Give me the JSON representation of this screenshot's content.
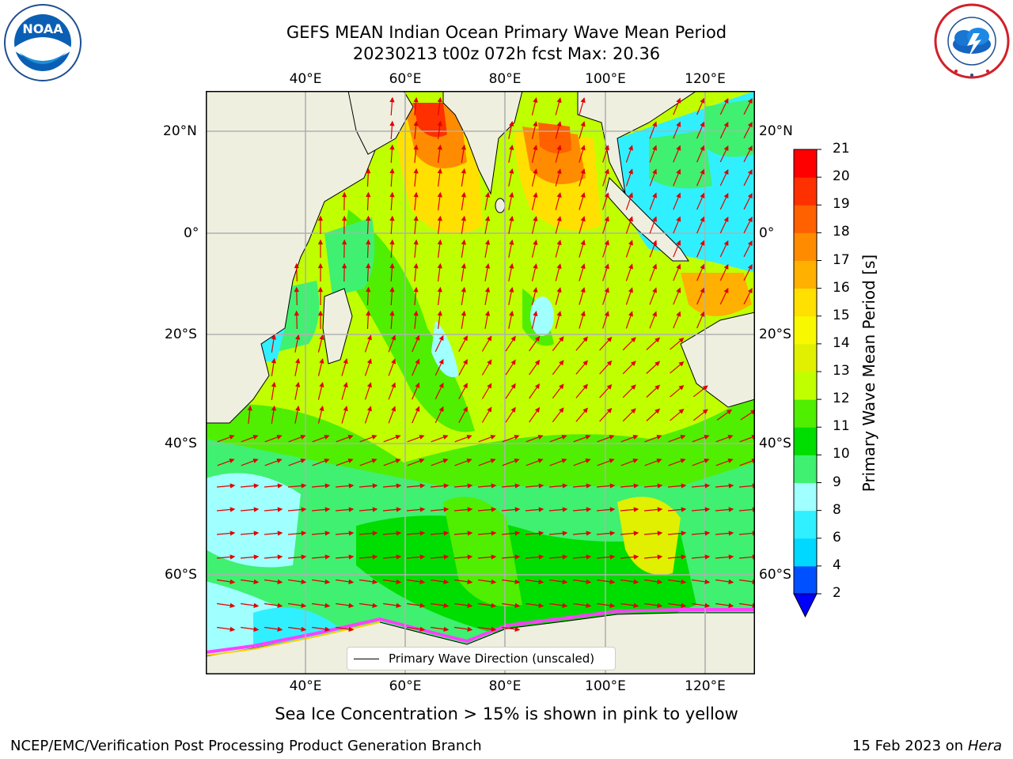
{
  "header": {
    "title_line1": "GEFS MEAN Indian Ocean Primary Wave Mean Period",
    "title_line2": "20230213 t00z 072h fcst   Max: 20.36"
  },
  "logos": {
    "noaa_text": "NOAA",
    "noaa_ring": "NATIONAL OCEANIC AND ATMOSPHERIC ADMINISTRATION",
    "noaa_bottom": "U.S. DEPARTMENT OF COMMERCE",
    "nws_ring": "NATIONAL WEATHER SERVICE"
  },
  "axes": {
    "lon_labels": [
      "40°E",
      "60°E",
      "80°E",
      "100°E",
      "120°E"
    ],
    "lat_labels": [
      "20°N",
      "0°",
      "20°S",
      "40°S",
      "60°S"
    ]
  },
  "colorbar": {
    "label": "Primary Wave Mean Period [s]",
    "ticks": [
      "2",
      "4",
      "6",
      "8",
      "9",
      "10",
      "11",
      "12",
      "13",
      "14",
      "15",
      "16",
      "17",
      "18",
      "19",
      "20",
      "21"
    ],
    "colors": [
      "#0050ff",
      "#00d8ff",
      "#30f0ff",
      "#a0ffff",
      "#40f070",
      "#00dd00",
      "#50ee00",
      "#c0ff00",
      "#e0f000",
      "#f8f800",
      "#ffe000",
      "#ffb000",
      "#ff8c00",
      "#ff6000",
      "#ff3000",
      "#ff0000"
    ],
    "extend_color": "#0000ff"
  },
  "legend": {
    "label": "Primary Wave Direction (unscaled)"
  },
  "notes": {
    "sea_ice": "Sea Ice Concentration > 15% is shown in pink to yellow"
  },
  "footer": {
    "left": "NCEP/EMC/Verification Post Processing Product Generation Branch",
    "right_prefix": "15 Feb 2023 on",
    "right_host": "Hera"
  },
  "colors": {
    "land": "#efefe0",
    "arrow": "#e00000",
    "grid": "#b0b0b0",
    "sea_ice": "#ff40ff"
  }
}
